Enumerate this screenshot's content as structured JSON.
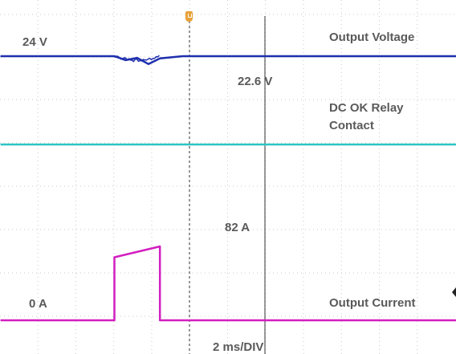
{
  "chart_data": {
    "type": "line",
    "title": "",
    "xlabel": "2 ms/DIV",
    "grid": true,
    "annotations": {
      "voltage_level": "24 V",
      "voltage_dip": "22.6 V",
      "current_peak": "82 A",
      "current_zero": "0 A"
    },
    "series": [
      {
        "name": "Output Voltage",
        "color": "#1f2fae",
        "unit": "V",
        "x_div": [
          0.0,
          2.5,
          2.75,
          3.0,
          3.25,
          3.5,
          4.0,
          10.0
        ],
        "values": [
          24.0,
          24.0,
          23.3,
          23.7,
          22.6,
          23.6,
          24.0,
          24.0
        ]
      },
      {
        "name": "DC OK Relay Contact",
        "color": "#2ec4c6",
        "x_div": [
          0.0,
          10.0
        ],
        "values": [
          1,
          1
        ]
      },
      {
        "name": "Output Current",
        "color": "#d21fc0",
        "unit": "A",
        "x_div": [
          0.0,
          2.5,
          2.5,
          3.5,
          3.5,
          10.0
        ],
        "values": [
          0,
          0,
          70,
          82,
          0,
          0
        ]
      }
    ]
  },
  "labels": {
    "voltage_level": "24 V",
    "voltage_dip": "22.6 V",
    "current_peak": "82 A",
    "current_zero": "0 A",
    "timebase": "2 ms/DIV",
    "output_voltage": "Output Voltage",
    "dc_ok_line1": "DC OK Relay",
    "dc_ok_line2": "Contact",
    "output_current": "Output Current"
  }
}
